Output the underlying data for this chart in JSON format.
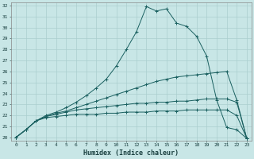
{
  "xlabel": "Humidex (Indice chaleur)",
  "background_color": "#c8e6e6",
  "grid_color": "#aacece",
  "line_color": "#1a6060",
  "xlim": [
    0,
    23
  ],
  "ylim": [
    20,
    32
  ],
  "xticks": [
    0,
    1,
    2,
    3,
    4,
    5,
    6,
    7,
    8,
    9,
    10,
    11,
    12,
    13,
    14,
    15,
    16,
    17,
    18,
    19,
    20,
    21,
    22,
    23
  ],
  "yticks": [
    20,
    21,
    22,
    23,
    24,
    25,
    26,
    27,
    28,
    29,
    30,
    31,
    32
  ],
  "series": [
    {
      "x": [
        0,
        1,
        2,
        3,
        4,
        5,
        6,
        7,
        8,
        9,
        10,
        11,
        12,
        13,
        14,
        15,
        16,
        17,
        18,
        19,
        20,
        21,
        22,
        23
      ],
      "y": [
        20.0,
        20.7,
        21.5,
        21.8,
        21.9,
        22.0,
        22.1,
        22.1,
        22.1,
        22.2,
        22.2,
        22.3,
        22.3,
        22.3,
        22.4,
        22.4,
        22.4,
        22.5,
        22.5,
        22.5,
        22.5,
        22.5,
        22.0,
        19.9
      ]
    },
    {
      "x": [
        0,
        1,
        2,
        3,
        4,
        5,
        6,
        7,
        8,
        9,
        10,
        11,
        12,
        13,
        14,
        15,
        16,
        17,
        18,
        19,
        20,
        21,
        22,
        23
      ],
      "y": [
        20.0,
        20.7,
        21.5,
        21.9,
        22.1,
        22.3,
        22.5,
        22.6,
        22.7,
        22.8,
        22.9,
        23.0,
        23.1,
        23.1,
        23.2,
        23.2,
        23.3,
        23.3,
        23.4,
        23.5,
        23.5,
        23.5,
        23.2,
        19.9
      ]
    },
    {
      "x": [
        0,
        1,
        2,
        3,
        4,
        5,
        6,
        7,
        8,
        9,
        10,
        11,
        12,
        13,
        14,
        15,
        16,
        17,
        18,
        19,
        20,
        21,
        22,
        23
      ],
      "y": [
        20.0,
        20.7,
        21.5,
        21.9,
        22.2,
        22.4,
        22.7,
        23.0,
        23.3,
        23.6,
        23.9,
        24.2,
        24.5,
        24.8,
        25.1,
        25.3,
        25.5,
        25.6,
        25.7,
        25.8,
        25.9,
        26.0,
        23.4,
        19.9
      ]
    },
    {
      "x": [
        0,
        1,
        2,
        3,
        4,
        5,
        6,
        7,
        8,
        9,
        10,
        11,
        12,
        13,
        14,
        15,
        16,
        17,
        18,
        19,
        20,
        21,
        22,
        23
      ],
      "y": [
        20.0,
        20.7,
        21.5,
        22.0,
        22.3,
        22.7,
        23.2,
        23.8,
        24.5,
        25.3,
        26.5,
        28.0,
        29.6,
        31.9,
        31.5,
        31.7,
        30.4,
        30.1,
        29.2,
        27.4,
        23.4,
        20.9,
        20.7,
        19.9
      ]
    }
  ]
}
